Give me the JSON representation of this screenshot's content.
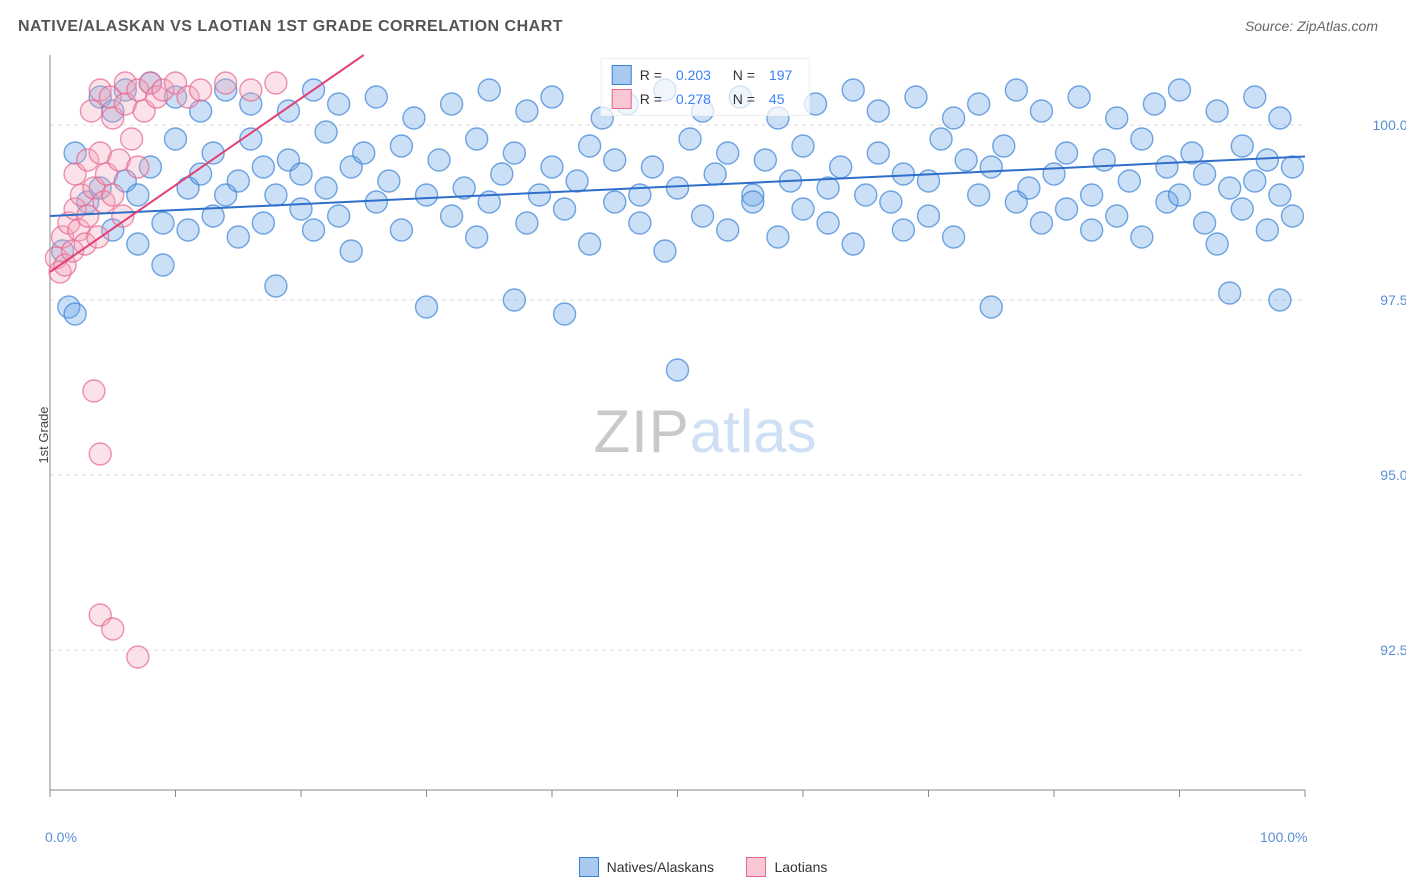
{
  "title": "NATIVE/ALASKAN VS LAOTIAN 1ST GRADE CORRELATION CHART",
  "source": "Source: ZipAtlas.com",
  "ylabel": "1st Grade",
  "watermark": {
    "zip": "ZIP",
    "atlas": "atlas"
  },
  "chart": {
    "type": "scatter",
    "xlim": [
      0,
      100
    ],
    "ylim": [
      90.5,
      101
    ],
    "xtick_labels": [
      {
        "value": 0,
        "label": "0.0%"
      },
      {
        "value": 100,
        "label": "100.0%"
      }
    ],
    "xtick_positions": [
      0,
      10,
      20,
      30,
      40,
      50,
      60,
      70,
      80,
      90,
      100
    ],
    "ytick_labels": [
      {
        "value": 92.5,
        "label": "92.5%"
      },
      {
        "value": 95.0,
        "label": "95.0%"
      },
      {
        "value": 97.5,
        "label": "97.5%"
      },
      {
        "value": 100.0,
        "label": "100.0%"
      }
    ],
    "marker_radius": 11,
    "marker_fill_opacity": 0.35,
    "marker_stroke_width": 1.4,
    "grid_color": "#dddddd",
    "axis_color": "#888888",
    "background_color": "#ffffff",
    "series": [
      {
        "name": "Natives/Alaskans",
        "color": "#6aa6e6",
        "stroke": "#3b82d6",
        "R": "0.203",
        "N": "197",
        "trend": {
          "x1": 0,
          "y1": 98.7,
          "x2": 100,
          "y2": 99.55,
          "color": "#2f6fc9",
          "width": 2
        },
        "points": [
          [
            1,
            98.2
          ],
          [
            1.5,
            97.4
          ],
          [
            2,
            97.3
          ],
          [
            2,
            99.6
          ],
          [
            3,
            98.9
          ],
          [
            4,
            99.1
          ],
          [
            4,
            100.4
          ],
          [
            5,
            98.5
          ],
          [
            5,
            100.2
          ],
          [
            6,
            100.5
          ],
          [
            6,
            99.2
          ],
          [
            7,
            99.0
          ],
          [
            7,
            98.3
          ],
          [
            8,
            99.4
          ],
          [
            8,
            100.6
          ],
          [
            9,
            98.6
          ],
          [
            9,
            98.0
          ],
          [
            10,
            99.8
          ],
          [
            10,
            100.4
          ],
          [
            11,
            99.1
          ],
          [
            11,
            98.5
          ],
          [
            12,
            99.3
          ],
          [
            12,
            100.2
          ],
          [
            13,
            98.7
          ],
          [
            13,
            99.6
          ],
          [
            14,
            99.0
          ],
          [
            14,
            100.5
          ],
          [
            15,
            98.4
          ],
          [
            15,
            99.2
          ],
          [
            16,
            99.8
          ],
          [
            16,
            100.3
          ],
          [
            17,
            98.6
          ],
          [
            17,
            99.4
          ],
          [
            18,
            99.0
          ],
          [
            18,
            97.7
          ],
          [
            19,
            99.5
          ],
          [
            19,
            100.2
          ],
          [
            20,
            98.8
          ],
          [
            20,
            99.3
          ],
          [
            21,
            100.5
          ],
          [
            21,
            98.5
          ],
          [
            22,
            99.1
          ],
          [
            22,
            99.9
          ],
          [
            23,
            98.7
          ],
          [
            23,
            100.3
          ],
          [
            24,
            99.4
          ],
          [
            24,
            98.2
          ],
          [
            25,
            99.6
          ],
          [
            26,
            100.4
          ],
          [
            26,
            98.9
          ],
          [
            27,
            99.2
          ],
          [
            28,
            99.7
          ],
          [
            28,
            98.5
          ],
          [
            29,
            100.1
          ],
          [
            30,
            99.0
          ],
          [
            30,
            97.4
          ],
          [
            31,
            99.5
          ],
          [
            32,
            98.7
          ],
          [
            32,
            100.3
          ],
          [
            33,
            99.1
          ],
          [
            34,
            98.4
          ],
          [
            34,
            99.8
          ],
          [
            35,
            100.5
          ],
          [
            35,
            98.9
          ],
          [
            36,
            99.3
          ],
          [
            37,
            97.5
          ],
          [
            37,
            99.6
          ],
          [
            38,
            98.6
          ],
          [
            38,
            100.2
          ],
          [
            39,
            99.0
          ],
          [
            40,
            99.4
          ],
          [
            40,
            100.4
          ],
          [
            41,
            98.8
          ],
          [
            41,
            97.3
          ],
          [
            42,
            99.2
          ],
          [
            43,
            99.7
          ],
          [
            43,
            98.3
          ],
          [
            44,
            100.1
          ],
          [
            45,
            99.5
          ],
          [
            45,
            98.9
          ],
          [
            46,
            100.3
          ],
          [
            47,
            99.0
          ],
          [
            47,
            98.6
          ],
          [
            48,
            99.4
          ],
          [
            49,
            100.5
          ],
          [
            49,
            98.2
          ],
          [
            50,
            99.1
          ],
          [
            50,
            96.5
          ],
          [
            51,
            99.8
          ],
          [
            52,
            100.2
          ],
          [
            52,
            98.7
          ],
          [
            53,
            99.3
          ],
          [
            54,
            98.5
          ],
          [
            54,
            99.6
          ],
          [
            55,
            100.4
          ],
          [
            56,
            99.0
          ],
          [
            56,
            98.9
          ],
          [
            57,
            99.5
          ],
          [
            58,
            100.1
          ],
          [
            58,
            98.4
          ],
          [
            59,
            99.2
          ],
          [
            60,
            99.7
          ],
          [
            60,
            98.8
          ],
          [
            61,
            100.3
          ],
          [
            62,
            99.1
          ],
          [
            62,
            98.6
          ],
          [
            63,
            99.4
          ],
          [
            64,
            100.5
          ],
          [
            64,
            98.3
          ],
          [
            65,
            99.0
          ],
          [
            66,
            99.6
          ],
          [
            66,
            100.2
          ],
          [
            67,
            98.9
          ],
          [
            68,
            99.3
          ],
          [
            68,
            98.5
          ],
          [
            69,
            100.4
          ],
          [
            70,
            99.2
          ],
          [
            70,
            98.7
          ],
          [
            71,
            99.8
          ],
          [
            72,
            100.1
          ],
          [
            72,
            98.4
          ],
          [
            73,
            99.5
          ],
          [
            74,
            99.0
          ],
          [
            74,
            100.3
          ],
          [
            75,
            99.4
          ],
          [
            75,
            97.4
          ],
          [
            76,
            99.7
          ],
          [
            77,
            100.5
          ],
          [
            77,
            98.9
          ],
          [
            78,
            99.1
          ],
          [
            79,
            98.6
          ],
          [
            79,
            100.2
          ],
          [
            80,
            99.3
          ],
          [
            81,
            98.8
          ],
          [
            81,
            99.6
          ],
          [
            82,
            100.4
          ],
          [
            83,
            99.0
          ],
          [
            83,
            98.5
          ],
          [
            84,
            99.5
          ],
          [
            85,
            100.1
          ],
          [
            85,
            98.7
          ],
          [
            86,
            99.2
          ],
          [
            87,
            99.8
          ],
          [
            87,
            98.4
          ],
          [
            88,
            100.3
          ],
          [
            89,
            99.4
          ],
          [
            89,
            98.9
          ],
          [
            90,
            99.0
          ],
          [
            90,
            100.5
          ],
          [
            91,
            99.6
          ],
          [
            92,
            98.6
          ],
          [
            92,
            99.3
          ],
          [
            93,
            100.2
          ],
          [
            93,
            98.3
          ],
          [
            94,
            99.1
          ],
          [
            94,
            97.6
          ],
          [
            95,
            99.7
          ],
          [
            95,
            98.8
          ],
          [
            96,
            100.4
          ],
          [
            96,
            99.2
          ],
          [
            97,
            98.5
          ],
          [
            97,
            99.5
          ],
          [
            98,
            100.1
          ],
          [
            98,
            99.0
          ],
          [
            98,
            97.5
          ],
          [
            99,
            98.7
          ],
          [
            99,
            99.4
          ]
        ]
      },
      {
        "name": "Laotians",
        "color": "#f4a8bc",
        "stroke": "#e6658e",
        "R": "0.278",
        "N": "45",
        "trend": {
          "x1": 0,
          "y1": 97.9,
          "x2": 25,
          "y2": 101,
          "color": "#e04177",
          "width": 2
        },
        "points": [
          [
            0.5,
            98.1
          ],
          [
            0.8,
            97.9
          ],
          [
            1,
            98.4
          ],
          [
            1.2,
            98.0
          ],
          [
            1.5,
            98.6
          ],
          [
            1.8,
            98.2
          ],
          [
            2,
            98.8
          ],
          [
            2,
            99.3
          ],
          [
            2.3,
            98.5
          ],
          [
            2.5,
            99.0
          ],
          [
            2.8,
            98.3
          ],
          [
            3,
            99.5
          ],
          [
            3,
            98.7
          ],
          [
            3.3,
            100.2
          ],
          [
            3.5,
            99.1
          ],
          [
            3.8,
            98.4
          ],
          [
            4,
            100.5
          ],
          [
            4,
            99.6
          ],
          [
            4.3,
            98.9
          ],
          [
            4.5,
            99.3
          ],
          [
            4.8,
            100.4
          ],
          [
            5,
            99.0
          ],
          [
            5,
            100.1
          ],
          [
            5.5,
            99.5
          ],
          [
            5.8,
            98.7
          ],
          [
            6,
            100.3
          ],
          [
            6,
            100.6
          ],
          [
            6.5,
            99.8
          ],
          [
            7,
            100.5
          ],
          [
            7,
            99.4
          ],
          [
            7.5,
            100.2
          ],
          [
            8,
            100.6
          ],
          [
            8.5,
            100.4
          ],
          [
            9,
            100.5
          ],
          [
            10,
            100.6
          ],
          [
            11,
            100.4
          ],
          [
            12,
            100.5
          ],
          [
            14,
            100.6
          ],
          [
            16,
            100.5
          ],
          [
            18,
            100.6
          ],
          [
            3.5,
            96.2
          ],
          [
            4,
            95.3
          ],
          [
            4,
            93.0
          ],
          [
            5,
            92.8
          ],
          [
            7,
            92.4
          ]
        ]
      }
    ],
    "legend_bottom": [
      {
        "label": "Natives/Alaskans",
        "fill": "#a9c9ef",
        "stroke": "#3b82d6"
      },
      {
        "label": "Laotians",
        "fill": "#f7c7d4",
        "stroke": "#e6658e"
      }
    ]
  }
}
